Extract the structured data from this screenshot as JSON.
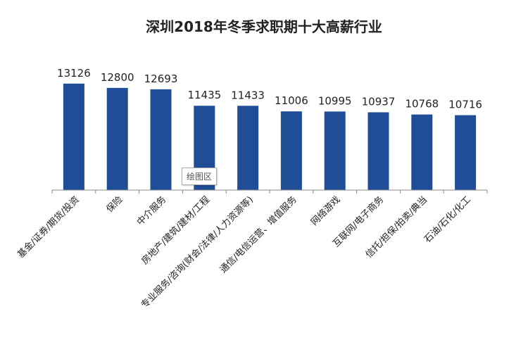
{
  "chart_data": {
    "type": "bar",
    "title": "深圳2018年冬季求职期十大高薪行业",
    "categories": [
      "基金/证券/期货/投资",
      "保险",
      "中介服务",
      "房地产/建筑/建材/工程",
      "专业服务/咨询(财会/法律/人力资源等)",
      "通信/电信运营、增值服务",
      "网络游戏",
      "互联网/电子商务",
      "信托/担保/拍卖/典当",
      "石油/石化/化工"
    ],
    "values": [
      13126,
      12800,
      12693,
      11435,
      11433,
      11006,
      10995,
      10937,
      10768,
      10716
    ],
    "xlabel": "",
    "ylabel": "",
    "ylim": [
      5000,
      14000
    ],
    "y_axis_visible": false,
    "grid": false,
    "data_labels": true,
    "bar_color": "#1F4E96",
    "axis_color": "#888888"
  },
  "tooltip": "绘图区"
}
